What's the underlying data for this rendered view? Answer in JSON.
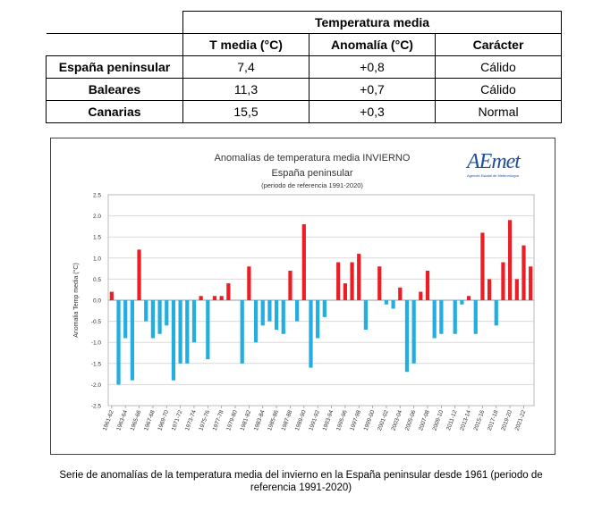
{
  "table": {
    "group_header": "Temperatura media",
    "col_headers": [
      "T media (°C)",
      "Anomalía (°C)",
      "Carácter"
    ],
    "rows": [
      {
        "region": "España peninsular",
        "t_media": "7,4",
        "anomalia": "+0,8",
        "caracter": "Cálido"
      },
      {
        "region": "Baleares",
        "t_media": "11,3",
        "anomalia": "+0,7",
        "caracter": "Cálido"
      },
      {
        "region": "Canarias",
        "t_media": "15,5",
        "anomalia": "+0,3",
        "caracter": "Normal"
      }
    ]
  },
  "logo": {
    "text": "AEmet",
    "subtitle": "Agencia Estatal de Meteorología"
  },
  "caption": "Serie de anomalías de la temperatura media del invierno en la España peninsular desde 1961 (periodo de referencia 1991-2020)",
  "colors": {
    "positive": "#ee1c25",
    "negative": "#22aee0",
    "grid": "#d9d9d9"
  },
  "chart_data": {
    "type": "bar",
    "title": "Anomalías de temperatura media INVIERNO",
    "subtitle": "España peninsular",
    "note": "(periodo de referencia 1991-2020)",
    "ylabel": "Anomalia Temp media (°C)",
    "xlabel": "",
    "ylim": [
      -2.5,
      2.5
    ],
    "ytick_step": 0.5,
    "grid": true,
    "legend": "none",
    "tick_labels": [
      "1961-62",
      "1963-64",
      "1965-66",
      "1967-68",
      "1969-70",
      "1971-72",
      "1973-74",
      "1975-76",
      "1977-78",
      "1979-80",
      "1981-82",
      "1983-84",
      "1985-86",
      "1987-88",
      "1989-90",
      "1991-92",
      "1993-94",
      "1995-96",
      "1997-98",
      "1999-00",
      "2001-02",
      "2003-04",
      "2005-06",
      "2007-08",
      "2009-10",
      "2011-12",
      "2013-14",
      "2015-16",
      "2017-18",
      "2019-20",
      "2021-22"
    ],
    "categories": [
      "1961-62",
      "1962-63",
      "1963-64",
      "1964-65",
      "1965-66",
      "1966-67",
      "1967-68",
      "1968-69",
      "1969-70",
      "1970-71",
      "1971-72",
      "1972-73",
      "1973-74",
      "1974-75",
      "1975-76",
      "1976-77",
      "1977-78",
      "1978-79",
      "1979-80",
      "1980-81",
      "1981-82",
      "1982-83",
      "1983-84",
      "1984-85",
      "1985-86",
      "1986-87",
      "1987-88",
      "1988-89",
      "1989-90",
      "1990-91",
      "1991-92",
      "1992-93",
      "1993-94",
      "1994-95",
      "1995-96",
      "1996-97",
      "1997-98",
      "1998-99",
      "1999-00",
      "2000-01",
      "2001-02",
      "2002-03",
      "2003-04",
      "2004-05",
      "2005-06",
      "2006-07",
      "2007-08",
      "2008-09",
      "2009-10",
      "2010-11",
      "2011-12",
      "2012-13",
      "2013-14",
      "2014-15",
      "2015-16",
      "2016-17",
      "2017-18",
      "2018-19",
      "2019-20",
      "2020-21",
      "2021-22",
      "2022-23"
    ],
    "values": [
      0.2,
      -2.0,
      -0.9,
      -1.9,
      1.2,
      -0.5,
      -0.9,
      -0.8,
      -0.6,
      -1.9,
      -1.5,
      -1.5,
      -1.0,
      0.1,
      -1.4,
      0.1,
      0.1,
      0.4,
      0.0,
      -1.5,
      0.8,
      -1.0,
      -0.6,
      -0.5,
      -0.7,
      -0.8,
      0.7,
      -0.5,
      1.8,
      -1.6,
      -0.9,
      -0.4,
      0.0,
      0.9,
      0.4,
      0.9,
      1.1,
      -0.7,
      0.0,
      0.8,
      -0.1,
      -0.2,
      0.3,
      -1.7,
      -1.5,
      0.2,
      0.7,
      -0.9,
      -0.8,
      0.0,
      -0.8,
      -0.1,
      0.1,
      -0.8,
      1.6,
      0.5,
      -0.6,
      0.9,
      1.9,
      0.5,
      1.3,
      0.8
    ]
  }
}
